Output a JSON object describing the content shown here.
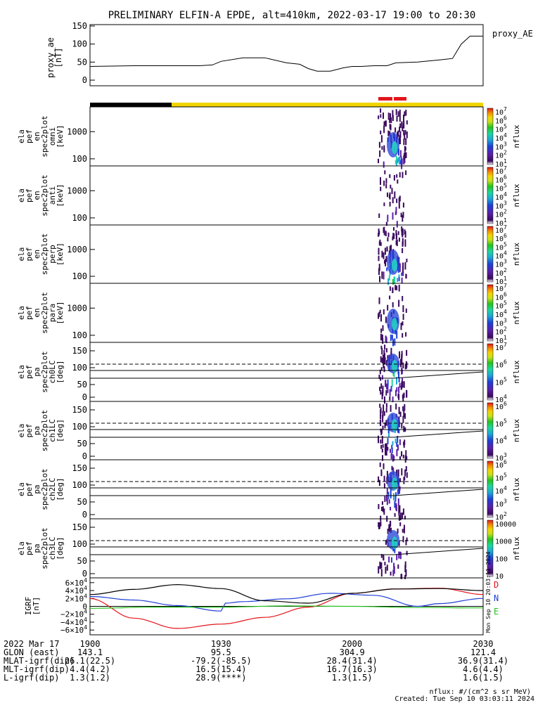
{
  "title": "PRELIMINARY ELFIN-A EPDE, alt=410km, 2022-03-17 19:00 to 20:30",
  "colors": {
    "line": "#000000",
    "black_bar": "#000000",
    "yellow_bar": "#f2d500",
    "red_bar": "#e3151c",
    "igrf_d": "#e3151c",
    "igrf_n": "#1f3fd6",
    "igrf_e": "#26c21e"
  },
  "chart_data": [
    {
      "type": "line",
      "name": "proxy_ae",
      "ylabel_lines": [
        "proxy_ae",
        "[nT]"
      ],
      "legend": "proxy_AE",
      "yticks": [
        "150",
        "100",
        "50",
        "0"
      ],
      "ylim": [
        0,
        150
      ],
      "xlim": [
        0,
        90
      ],
      "x": [
        0,
        5,
        10,
        15,
        20,
        25,
        28,
        30,
        35,
        40,
        45,
        48,
        50,
        52,
        55,
        58,
        60,
        62,
        65,
        68,
        70,
        75,
        80,
        83,
        85,
        87,
        90
      ],
      "y": [
        38,
        39,
        40,
        40,
        40,
        40,
        42,
        52,
        62,
        62,
        48,
        44,
        32,
        25,
        25,
        34,
        38,
        38,
        40,
        40,
        48,
        50,
        56,
        60,
        100,
        122,
        122
      ]
    },
    {
      "type": "heatmap",
      "name": "omni",
      "ylabel_lines": [
        "ela",
        "pef",
        "en",
        "spec2plot",
        "omni",
        "[keV]"
      ],
      "yticks": [
        "1000",
        "100"
      ],
      "cbar_ticks": [
        "10^7",
        "10^6",
        "10^5",
        "10^4",
        "10^3",
        "10^2",
        "10^1"
      ],
      "cbar_label": "nflux",
      "log_scale": true
    },
    {
      "type": "heatmap",
      "name": "anti",
      "ylabel_lines": [
        "ela",
        "pef",
        "en",
        "spec2plot",
        "anti",
        "[keV]"
      ],
      "yticks": [
        "1000",
        "100"
      ],
      "cbar_ticks": [
        "10^7",
        "10^6",
        "10^5",
        "10^4",
        "10^3",
        "10^2",
        "10^1"
      ],
      "cbar_label": "nflux",
      "log_scale": true
    },
    {
      "type": "heatmap",
      "name": "perp",
      "ylabel_lines": [
        "ela",
        "pef",
        "en",
        "spec2plot",
        "perp",
        "[keV]"
      ],
      "yticks": [
        "1000",
        "100"
      ],
      "cbar_ticks": [
        "10^7",
        "10^6",
        "10^5",
        "10^4",
        "10^3",
        "10^2",
        "10^1"
      ],
      "cbar_label": "nflux",
      "log_scale": true
    },
    {
      "type": "heatmap",
      "name": "para",
      "ylabel_lines": [
        "ela",
        "pef",
        "en",
        "spec2plot",
        "para",
        "[keV]"
      ],
      "yticks": [
        "1000",
        "100"
      ],
      "cbar_ticks": [
        "10^7",
        "10^6",
        "10^5",
        "10^4",
        "10^3",
        "10^2",
        "10^1"
      ],
      "cbar_label": "nflux",
      "log_scale": true
    },
    {
      "type": "heatmap",
      "name": "ch0LC",
      "ylabel_lines": [
        "ela",
        "pef",
        "pa",
        "spec2plot",
        "ch0LC",
        "[deg]"
      ],
      "yticks": [
        "150",
        "100",
        "50",
        "0"
      ],
      "ylim": [
        0,
        180
      ],
      "lc_lines": [
        90,
        110,
        70
      ],
      "cbar_ticks": [
        "10^7",
        "10^6",
        "10^5",
        "10^4"
      ],
      "cbar_label": "nflux"
    },
    {
      "type": "heatmap",
      "name": "ch1LC",
      "ylabel_lines": [
        "ela",
        "pef",
        "pa",
        "spec2plot",
        "ch1LC",
        "[deg]"
      ],
      "yticks": [
        "150",
        "100",
        "50",
        "0"
      ],
      "ylim": [
        0,
        180
      ],
      "cbar_ticks": [
        "10^6",
        "10^5",
        "10^4",
        "10^3"
      ],
      "cbar_label": "nflux"
    },
    {
      "type": "heatmap",
      "name": "ch2LC",
      "ylabel_lines": [
        "ela",
        "pef",
        "pa",
        "spec2plot",
        "ch2LC",
        "[deg]"
      ],
      "yticks": [
        "150",
        "100",
        "50",
        "0"
      ],
      "ylim": [
        0,
        180
      ],
      "cbar_ticks": [
        "10^6",
        "10^5",
        "10^4",
        "10^3",
        "10^2"
      ],
      "cbar_label": "nflux"
    },
    {
      "type": "heatmap",
      "name": "ch3LC",
      "ylabel_lines": [
        "ela",
        "pef",
        "pa",
        "spec2plot",
        "ch3LC",
        "[deg]"
      ],
      "yticks": [
        "150",
        "100",
        "50",
        "0"
      ],
      "ylim": [
        0,
        180
      ],
      "cbar_ticks": [
        "10000",
        "1000",
        "100",
        "10"
      ],
      "cbar_label": "nflux"
    },
    {
      "type": "line",
      "name": "IGRF",
      "ylabel_lines": [
        "IGRF",
        "[nT]"
      ],
      "yticks": [
        "6×10^4",
        "4×10^4",
        "2×10^4",
        "0",
        "−2×10^4",
        "−4×10^4",
        "−6×10^4"
      ],
      "ylim": [
        -65000,
        65000
      ],
      "xlim": [
        0,
        90
      ],
      "series": [
        {
          "name": "D",
          "x": [
            0,
            10,
            20,
            30,
            40,
            50,
            60,
            70,
            80,
            90
          ],
          "y": [
            20000,
            -30000,
            -56000,
            -45000,
            -28000,
            -2000,
            33000,
            44000,
            46000,
            30000
          ]
        },
        {
          "name": "N",
          "x": [
            0,
            10,
            20,
            30,
            31,
            35,
            45,
            55,
            65,
            75,
            80,
            90
          ],
          "y": [
            25000,
            16000,
            2000,
            -12000,
            8000,
            12000,
            19000,
            33000,
            28000,
            0,
            7000,
            20000
          ]
        },
        {
          "name": "E",
          "x": [
            0,
            15,
            30,
            45,
            60,
            75,
            90
          ],
          "y": [
            -5000,
            -2000,
            -2000,
            1000,
            0,
            -3000,
            -4000
          ]
        },
        {
          "x": [
            0,
            10,
            20,
            30,
            40,
            50,
            60,
            70,
            80,
            90
          ],
          "y": [
            30000,
            43000,
            55000,
            45000,
            14000,
            8000,
            33000,
            44000,
            45000,
            40000
          ]
        }
      ],
      "side_note": "Mon Sep 10 20:03:11 2024"
    }
  ],
  "axis_footer": {
    "rows": [
      {
        "label": "2022 Mar 17",
        "values": [
          "1900",
          "1930",
          "2000",
          "2030"
        ]
      },
      {
        "label": "GLON (east)",
        "values": [
          "143.1",
          "95.5",
          "304.9",
          "121.4"
        ]
      },
      {
        "label": "MLAT-igrf(dip)",
        "values": [
          "26.1(22.5)",
          "-79.2(-85.5)",
          "28.4(31.4)",
          "36.9(31.4)"
        ]
      },
      {
        "label": "MLT-igrf(dip)",
        "values": [
          "4.4(4.2)",
          "16.5(15.4)",
          "16.7(16.3)",
          "4.6(4.4)"
        ]
      },
      {
        "label": "L-igrf(dip)",
        "values": [
          "1.3(1.2)",
          "28.9(****)",
          "1.3(1.5)",
          "1.6(1.5)"
        ]
      }
    ]
  },
  "units_note": "nflux: #/(cm^2 s sr MeV)",
  "created_note": "Created: Tue Sep 10 03:03:11 2024"
}
